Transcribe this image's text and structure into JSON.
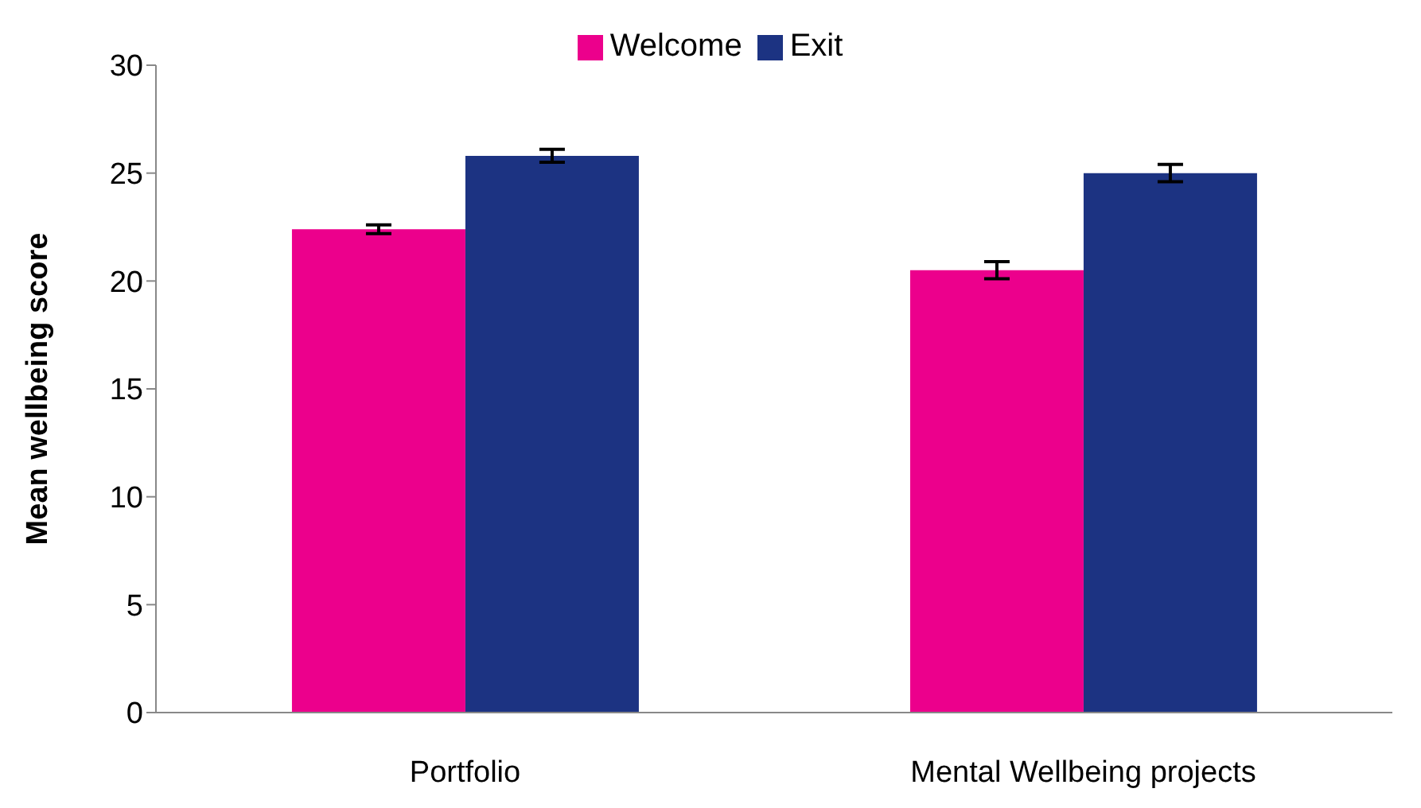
{
  "chart_data": {
    "type": "bar",
    "ylabel": "Mean wellbeing score",
    "categories": [
      "Portfolio",
      "Mental Wellbeing projects"
    ],
    "series": [
      {
        "name": "Welcome",
        "color": "#ec008c",
        "values": [
          22.4,
          20.5
        ],
        "errors": [
          0.2,
          0.4
        ]
      },
      {
        "name": "Exit",
        "color": "#1c3382",
        "values": [
          25.8,
          25.0
        ],
        "errors": [
          0.3,
          0.4
        ]
      }
    ],
    "ylim": [
      0,
      30
    ],
    "yticks": [
      0,
      5,
      10,
      15,
      20,
      25,
      30
    ],
    "grid": false,
    "legend": "top"
  }
}
